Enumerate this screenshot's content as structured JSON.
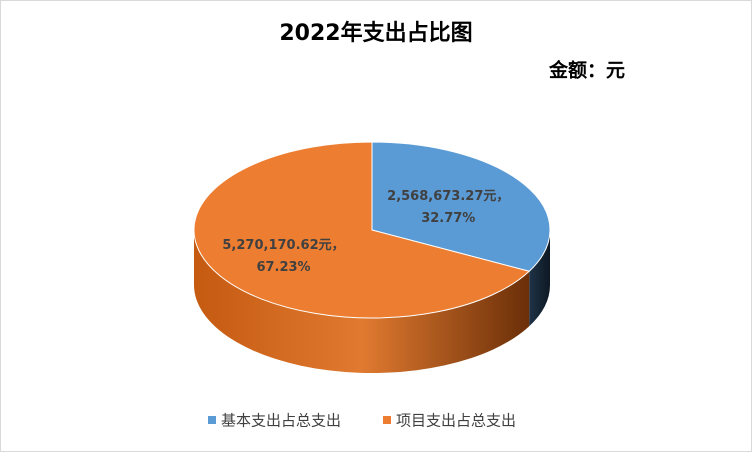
{
  "chart_data": {
    "type": "pie3d",
    "title": "2022年支出占比图",
    "subtitle": "金额：元",
    "categories": [
      "基本支出占总支出",
      "项目支出占总支出"
    ],
    "values": [
      32.77,
      67.23
    ],
    "value_labels": [
      "32.77%",
      "67.23%"
    ],
    "amounts": [
      2568673.27,
      5270170.62
    ],
    "amount_labels": [
      "2,568,673.27元，",
      "5,270,170.62元，"
    ],
    "colors": [
      "#5b9bd5",
      "#ed7d31"
    ],
    "legend": "bottom"
  }
}
